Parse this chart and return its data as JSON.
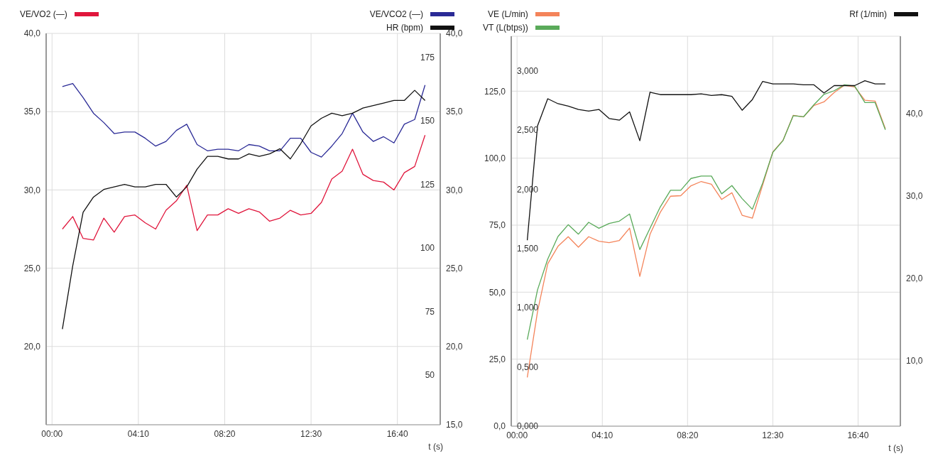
{
  "chart_data": [
    {
      "type": "line",
      "xlabel": "t (s)",
      "legend": "top",
      "grid": true,
      "x": [
        30,
        60,
        90,
        120,
        150,
        180,
        210,
        240,
        270,
        300,
        330,
        360,
        390,
        420,
        450,
        480,
        510,
        540,
        570,
        600,
        630,
        660,
        690,
        720,
        750,
        780,
        810,
        840,
        870,
        900,
        930,
        960,
        990,
        1020,
        1050,
        1080
      ],
      "xlim": [
        -17,
        1124
      ],
      "xticks": [
        {
          "value": 0,
          "label": "00:00"
        },
        {
          "value": 250,
          "label": "04:10"
        },
        {
          "value": 500,
          "label": "08:20"
        },
        {
          "value": 750,
          "label": "12:30"
        },
        {
          "value": 1000,
          "label": "16:40"
        }
      ],
      "ylim": [
        15,
        40
      ],
      "yticks": [
        {
          "value": 20,
          "label": "20,0"
        },
        {
          "value": 25,
          "label": "25,0"
        },
        {
          "value": 30,
          "label": "30,0"
        },
        {
          "value": 35,
          "label": "35,0"
        },
        {
          "value": 40,
          "label": "40,0"
        }
      ],
      "y2lim": [
        15,
        40
      ],
      "y2ticks": [
        {
          "value": 15,
          "label": "15,0"
        },
        {
          "value": 20,
          "label": "20,0"
        },
        {
          "value": 25,
          "label": "25,0"
        },
        {
          "value": 30,
          "label": "30,0"
        },
        {
          "value": 35,
          "label": "35,0"
        },
        {
          "value": 40,
          "label": "40,0"
        }
      ],
      "y3lim": [
        30.4,
        184.4
      ],
      "y3ticks": [
        50,
        75,
        100,
        125,
        150,
        175
      ],
      "series": [
        {
          "name": "VE/VO2 (—)",
          "color": "#e0163c",
          "axis": "y",
          "values": [
            27.5,
            28.3,
            26.9,
            26.8,
            28.2,
            27.3,
            28.3,
            28.4,
            27.9,
            27.5,
            28.7,
            29.3,
            30.3,
            27.4,
            28.4,
            28.4,
            28.8,
            28.5,
            28.8,
            28.6,
            28.0,
            28.2,
            28.7,
            28.4,
            28.5,
            29.2,
            30.7,
            31.2,
            32.6,
            31.0,
            30.6,
            30.5,
            30.0,
            31.1,
            31.5,
            33.5
          ]
        },
        {
          "name": "VE/VCO2 (—)",
          "color": "#2a2a96",
          "axis": "y2",
          "values": [
            36.6,
            36.8,
            35.9,
            34.9,
            34.3,
            33.6,
            33.7,
            33.7,
            33.3,
            32.8,
            33.1,
            33.8,
            34.2,
            32.9,
            32.5,
            32.6,
            32.6,
            32.5,
            32.9,
            32.8,
            32.5,
            32.5,
            33.3,
            33.3,
            32.4,
            32.1,
            32.8,
            33.6,
            34.9,
            33.7,
            33.1,
            33.4,
            33.0,
            34.2,
            34.5,
            36.7
          ]
        },
        {
          "name": "HR (bpm)",
          "color": "#111111",
          "axis": "y3",
          "values": [
            68,
            93,
            114,
            120,
            123,
            124,
            125,
            124,
            124,
            125,
            125,
            120,
            124,
            131,
            136,
            136,
            135,
            135,
            137,
            136,
            137,
            139,
            135,
            141,
            148,
            151,
            153,
            152,
            153,
            155,
            156,
            157,
            158,
            158,
            162,
            158
          ]
        }
      ]
    },
    {
      "type": "line",
      "xlabel": "t (s)",
      "legend": "top",
      "grid": true,
      "x": [
        30,
        60,
        90,
        120,
        150,
        180,
        210,
        240,
        270,
        300,
        330,
        360,
        390,
        420,
        450,
        480,
        510,
        540,
        570,
        600,
        630,
        660,
        690,
        720,
        750,
        780,
        810,
        840,
        870,
        900,
        930,
        960,
        990,
        1020,
        1050,
        1080
      ],
      "xlim": [
        -17,
        1124
      ],
      "xticks": [
        {
          "value": 0,
          "label": "00:00"
        },
        {
          "value": 250,
          "label": "04:10"
        },
        {
          "value": 500,
          "label": "08:20"
        },
        {
          "value": 750,
          "label": "12:30"
        },
        {
          "value": 1000,
          "label": "16:40"
        }
      ],
      "ylim": [
        0,
        145.5
      ],
      "yticks": [
        {
          "value": 0,
          "label": "0,0"
        },
        {
          "value": 25,
          "label": "25,0"
        },
        {
          "value": 50,
          "label": "50,0"
        },
        {
          "value": 75,
          "label": "75,0"
        },
        {
          "value": 100,
          "label": "100,0"
        },
        {
          "value": 125,
          "label": "125,0"
        }
      ],
      "y2lim": [
        2,
        49.4
      ],
      "y2ticks": [
        {
          "value": 10,
          "label": "10,0"
        },
        {
          "value": 20,
          "label": "20,0"
        },
        {
          "value": 30,
          "label": "30,0"
        },
        {
          "value": 40,
          "label": "40,0"
        }
      ],
      "y3lim": [
        0,
        3.29
      ],
      "y3ticks": [
        {
          "value": 0,
          "label": "0,000"
        },
        {
          "value": 0.5,
          "label": "0,500"
        },
        {
          "value": 1,
          "label": "1,000"
        },
        {
          "value": 1.5,
          "label": "1,500"
        },
        {
          "value": 2,
          "label": "2,000"
        },
        {
          "value": 2.5,
          "label": "2,500"
        },
        {
          "value": 3,
          "label": "3,000"
        }
      ],
      "series": [
        {
          "name": "VE (L/min)",
          "color": "#f4845a",
          "axis": "y",
          "values": [
            18.2,
            42.7,
            60.6,
            67.1,
            70.7,
            66.8,
            70.7,
            69.0,
            68.5,
            69.3,
            73.9,
            55.9,
            71.6,
            79.8,
            85.8,
            86.0,
            89.7,
            91.3,
            90.3,
            84.6,
            87.1,
            78.7,
            77.6,
            89.9,
            102.3,
            106.7,
            116.0,
            115.4,
            119.6,
            121.0,
            124.5,
            127.2,
            126.6,
            121.6,
            121.3,
            111.0
          ]
        },
        {
          "name": "VT (L(btps))",
          "color": "#5aaa5a",
          "axis": "y3",
          "values": [
            0.73,
            1.15,
            1.41,
            1.6,
            1.7,
            1.62,
            1.72,
            1.67,
            1.71,
            1.73,
            1.79,
            1.49,
            1.67,
            1.85,
            1.99,
            1.99,
            2.09,
            2.11,
            2.11,
            1.96,
            2.03,
            1.92,
            1.83,
            2.05,
            2.31,
            2.41,
            2.62,
            2.61,
            2.71,
            2.8,
            2.83,
            2.88,
            2.87,
            2.73,
            2.73,
            2.5
          ]
        },
        {
          "name": "Rf (1/min)",
          "color": "#111111",
          "axis": "y2",
          "values": [
            24.6,
            38.5,
            41.8,
            41.2,
            40.9,
            40.5,
            40.3,
            40.5,
            39.4,
            39.2,
            40.2,
            36.7,
            42.6,
            42.3,
            42.3,
            42.3,
            42.3,
            42.4,
            42.2,
            42.3,
            42.1,
            40.4,
            41.7,
            43.9,
            43.6,
            43.6,
            43.6,
            43.5,
            43.5,
            42.5,
            43.4,
            43.4,
            43.4,
            44.0,
            43.6,
            43.6
          ]
        }
      ]
    }
  ]
}
